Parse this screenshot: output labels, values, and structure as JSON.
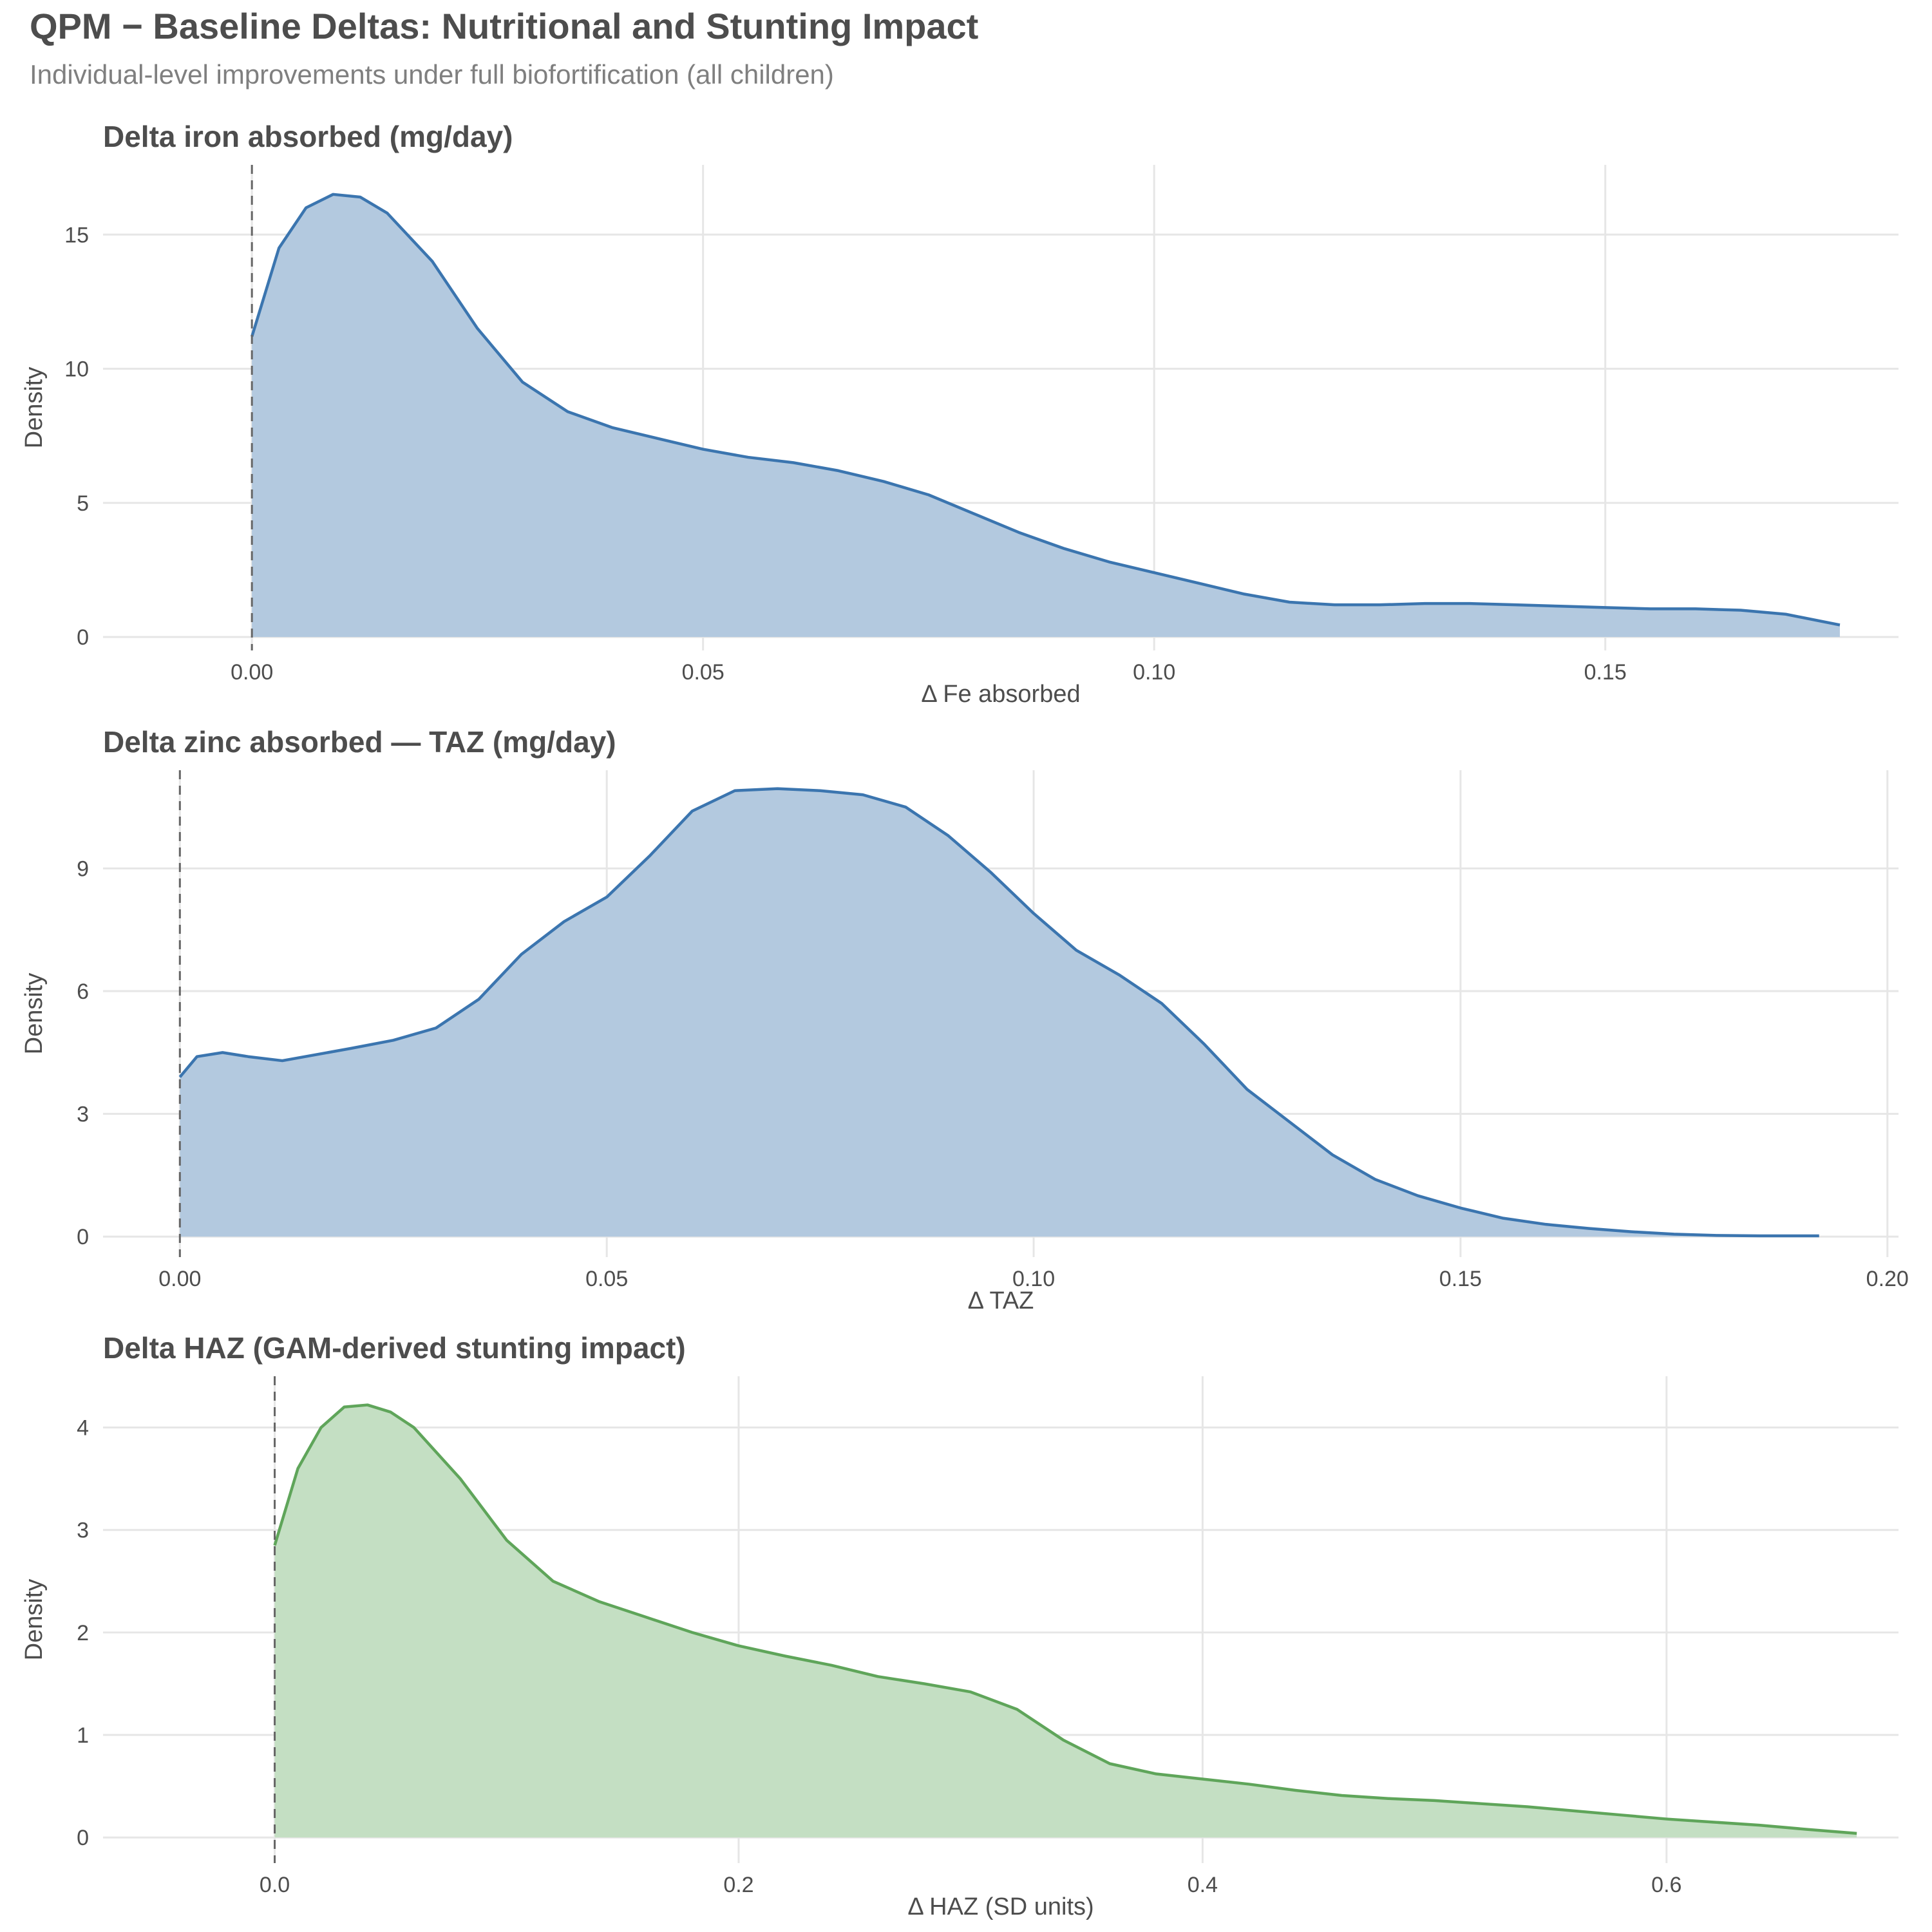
{
  "header": {
    "title": "QPM − Baseline Deltas: Nutritional and Stunting Impact",
    "subtitle": "Individual-level improvements under full biofortification (all children)"
  },
  "colors": {
    "blue_line": "#3b75af",
    "blue_fill": "#b3c9df",
    "green_line": "#5fa55a",
    "green_fill": "#c4dfc3",
    "grid": "#e6e6e6",
    "text": "#4d4d4d",
    "axis_text": "#4d4d4d",
    "ref_line": "#666666"
  },
  "chart_data": [
    {
      "type": "area",
      "title": "Delta iron absorbed (mg/day)",
      "xlabel": "Δ Fe absorbed",
      "ylabel": "Density",
      "xlim": [
        -0.0165,
        0.1825
      ],
      "ylim": [
        -0.5,
        17.6
      ],
      "xticks": [
        0.0,
        0.05,
        0.1,
        0.15
      ],
      "xtick_labels": [
        "0.00",
        "0.05",
        "0.10",
        "0.15"
      ],
      "yticks": [
        0,
        5,
        10,
        15
      ],
      "ytick_labels": [
        "0",
        "5",
        "10",
        "15"
      ],
      "reference_line_x": 0,
      "color": "blue",
      "x": [
        0,
        0.003,
        0.006,
        0.009,
        0.012,
        0.015,
        0.02,
        0.025,
        0.03,
        0.035,
        0.04,
        0.045,
        0.05,
        0.055,
        0.06,
        0.065,
        0.07,
        0.075,
        0.08,
        0.085,
        0.09,
        0.095,
        0.1,
        0.105,
        0.11,
        0.115,
        0.12,
        0.125,
        0.13,
        0.135,
        0.14,
        0.145,
        0.15,
        0.155,
        0.16,
        0.165,
        0.17,
        0.176
      ],
      "y": [
        11.2,
        14.5,
        16.0,
        16.5,
        16.4,
        15.8,
        14.0,
        11.5,
        9.5,
        8.4,
        7.8,
        7.4,
        7.0,
        6.7,
        6.5,
        6.2,
        5.8,
        5.3,
        4.6,
        3.9,
        3.3,
        2.8,
        2.4,
        2.0,
        1.6,
        1.3,
        1.2,
        1.2,
        1.25,
        1.25,
        1.2,
        1.15,
        1.1,
        1.05,
        1.05,
        1.0,
        0.85,
        0.45
      ]
    },
    {
      "type": "area",
      "title": "Delta zinc absorbed — TAZ (mg/day)",
      "xlabel": "Δ TAZ",
      "ylabel": "Density",
      "xlim": [
        -0.009,
        0.2013
      ],
      "ylim": [
        -0.5,
        11.4
      ],
      "xticks": [
        0.0,
        0.05,
        0.1,
        0.15,
        0.2
      ],
      "xtick_labels": [
        "0.00",
        "0.05",
        "0.10",
        "0.15",
        "0.20"
      ],
      "yticks": [
        0,
        3,
        6,
        9
      ],
      "ytick_labels": [
        "0",
        "3",
        "6",
        "9"
      ],
      "reference_line_x": 0,
      "color": "blue",
      "x": [
        0,
        0.002,
        0.005,
        0.008,
        0.012,
        0.02,
        0.025,
        0.03,
        0.035,
        0.04,
        0.045,
        0.05,
        0.055,
        0.06,
        0.065,
        0.07,
        0.075,
        0.08,
        0.085,
        0.09,
        0.095,
        0.1,
        0.105,
        0.11,
        0.115,
        0.12,
        0.125,
        0.13,
        0.135,
        0.14,
        0.145,
        0.15,
        0.155,
        0.16,
        0.165,
        0.17,
        0.175,
        0.18,
        0.185,
        0.192
      ],
      "y": [
        3.9,
        4.4,
        4.5,
        4.4,
        4.3,
        4.6,
        4.8,
        5.1,
        5.8,
        6.9,
        7.7,
        8.3,
        9.3,
        10.4,
        10.9,
        10.95,
        10.9,
        10.8,
        10.5,
        9.8,
        8.9,
        7.9,
        7.0,
        6.4,
        5.7,
        4.7,
        3.6,
        2.8,
        2.0,
        1.4,
        1.0,
        0.7,
        0.45,
        0.3,
        0.2,
        0.12,
        0.06,
        0.03,
        0.02,
        0.02
      ]
    },
    {
      "type": "area",
      "title": "Delta HAZ (GAM-derived stunting impact)",
      "xlabel": "Δ HAZ (SD units)",
      "ylabel": "Density",
      "xlim": [
        -0.074,
        0.7
      ],
      "ylim": [
        -0.25,
        4.5
      ],
      "xticks": [
        0.0,
        0.2,
        0.4,
        0.6
      ],
      "xtick_labels": [
        "0.0",
        "0.2",
        "0.4",
        "0.6"
      ],
      "yticks": [
        0,
        1,
        2,
        3,
        4
      ],
      "ytick_labels": [
        "0",
        "1",
        "2",
        "3",
        "4"
      ],
      "reference_line_x": 0,
      "color": "green",
      "x": [
        0,
        0.01,
        0.02,
        0.03,
        0.04,
        0.05,
        0.06,
        0.08,
        0.1,
        0.12,
        0.14,
        0.16,
        0.18,
        0.2,
        0.22,
        0.24,
        0.26,
        0.28,
        0.3,
        0.32,
        0.34,
        0.36,
        0.38,
        0.4,
        0.42,
        0.44,
        0.46,
        0.48,
        0.5,
        0.52,
        0.54,
        0.56,
        0.58,
        0.6,
        0.62,
        0.64,
        0.66,
        0.682
      ],
      "y": [
        2.85,
        3.6,
        4.0,
        4.2,
        4.22,
        4.15,
        4.0,
        3.5,
        2.9,
        2.5,
        2.3,
        2.15,
        2.0,
        1.87,
        1.77,
        1.68,
        1.57,
        1.5,
        1.42,
        1.25,
        0.95,
        0.72,
        0.62,
        0.57,
        0.52,
        0.46,
        0.41,
        0.38,
        0.36,
        0.33,
        0.3,
        0.26,
        0.22,
        0.18,
        0.15,
        0.12,
        0.08,
        0.04
      ]
    }
  ]
}
